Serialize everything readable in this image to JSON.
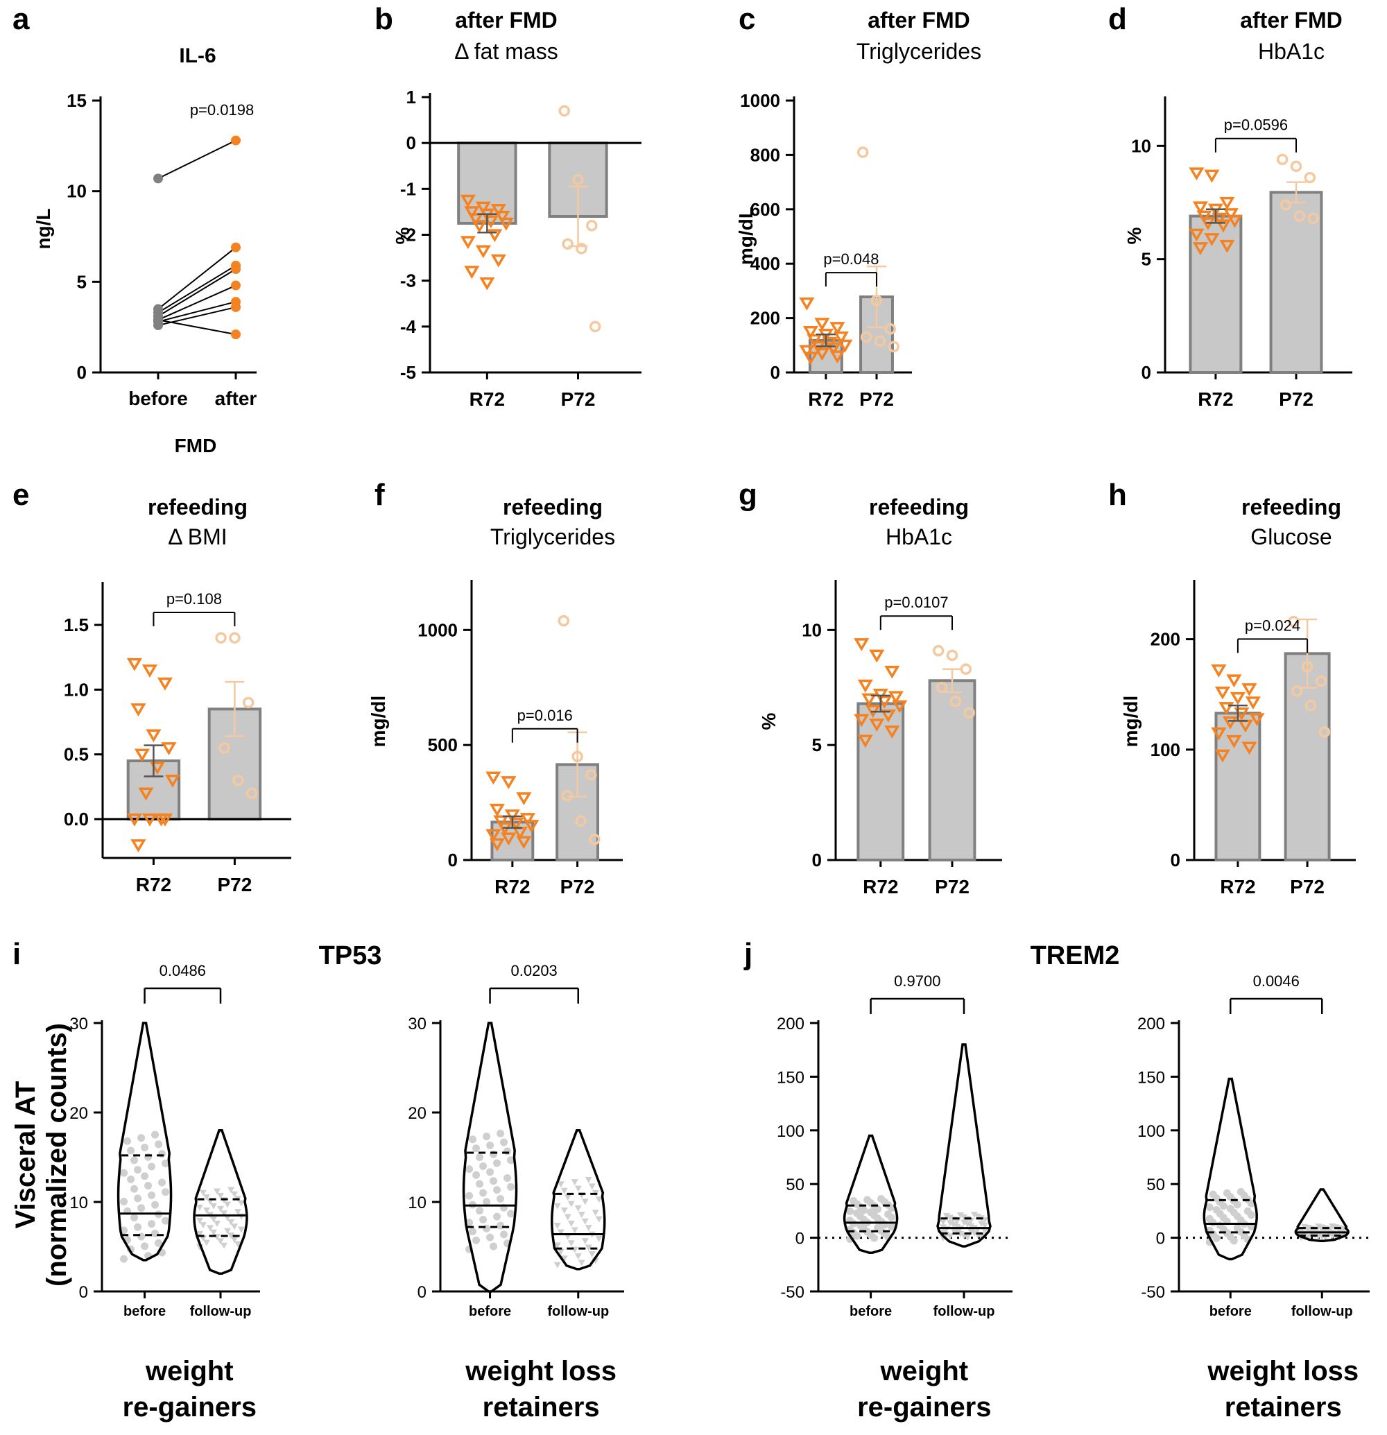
{
  "colors": {
    "orange": "#f58220",
    "peach": "#f5c9a0",
    "gray_point": "#808080",
    "bar": "#c8c8c8",
    "bar_edge": "#808080",
    "violin_point": "#cfcfcf"
  },
  "chart_data": [
    {
      "panel": "a",
      "type": "line",
      "title": [
        "IL-6"
      ],
      "ylabel": "ng/L",
      "xlabel": "FMD",
      "categories": [
        "before",
        "after"
      ],
      "ylim": [
        0,
        15
      ],
      "yticks": [
        "0",
        "5",
        "10",
        "15"
      ],
      "pvalue": "p=0.0198",
      "pairs": [
        [
          10.7,
          12.8
        ],
        [
          3.5,
          6.9
        ],
        [
          3.3,
          5.9
        ],
        [
          3.1,
          5.7
        ],
        [
          2.9,
          4.8
        ],
        [
          2.8,
          3.9
        ],
        [
          2.6,
          3.6
        ],
        [
          2.9,
          2.1
        ]
      ]
    },
    {
      "panel": "b",
      "type": "bar",
      "title": [
        "after FMD",
        "Δ fat mass"
      ],
      "ylabel": "%",
      "categories": [
        "R72",
        "P72"
      ],
      "ylim": [
        -5,
        1
      ],
      "yticks": [
        "-5",
        "-4",
        "-3",
        "-2",
        "-1",
        "0",
        "1"
      ],
      "values": [
        -1.75,
        -1.6
      ],
      "sem": [
        0.2,
        0.65
      ],
      "points": [
        [
          -1.25,
          -1.4,
          -1.45,
          -1.5,
          -1.55,
          -1.6,
          -1.65,
          -1.7,
          -1.75,
          -1.8,
          -2.0,
          -2.15,
          -2.35,
          -2.55,
          -2.8,
          -3.05
        ],
        [
          0.7,
          -0.8,
          -1.8,
          -2.2,
          -2.3,
          -4.0
        ]
      ]
    },
    {
      "panel": "c",
      "type": "bar",
      "title": [
        "after FMD",
        "Triglycerides"
      ],
      "ylabel": "mg/dL",
      "categories": [
        "R72",
        "P72"
      ],
      "ylim": [
        0,
        1000
      ],
      "yticks": [
        "0",
        "200",
        "400",
        "600",
        "800",
        "1000"
      ],
      "values": [
        118,
        278
      ],
      "sem": [
        22,
        112
      ],
      "pvalue": "p=0.048",
      "points": [
        [
          255,
          180,
          165,
          150,
          140,
          130,
          120,
          110,
          100,
          95,
          90,
          80,
          70,
          60,
          55
        ],
        [
          810,
          265,
          160,
          130,
          115,
          95
        ]
      ]
    },
    {
      "panel": "d",
      "type": "bar",
      "title": [
        "after FMD",
        "HbA1c"
      ],
      "ylabel": "%",
      "categories": [
        "R72",
        "P72"
      ],
      "ylim": [
        0,
        12
      ],
      "yticks": [
        "0",
        "5",
        "10"
      ],
      "values": [
        6.9,
        7.95
      ],
      "sem": [
        0.3,
        0.45
      ],
      "pvalue": "p=0.0596",
      "points": [
        [
          8.8,
          8.7,
          7.5,
          7.3,
          7.2,
          7.0,
          6.9,
          6.8,
          6.7,
          6.6,
          6.5,
          6.1,
          5.9,
          5.6,
          5.5
        ],
        [
          9.4,
          9.1,
          8.6,
          7.4,
          6.9,
          6.8
        ]
      ]
    },
    {
      "panel": "e",
      "type": "bar",
      "title": [
        "refeeding",
        "Δ BMI"
      ],
      "ylabel": "",
      "categories": [
        "R72",
        "P72"
      ],
      "ylim": [
        -0.3,
        1.8
      ],
      "yticks": [
        "0.0",
        "0.5",
        "1.0",
        "1.5"
      ],
      "values": [
        0.45,
        0.85
      ],
      "sem": [
        0.12,
        0.21
      ],
      "pvalue": "p=0.108",
      "points": [
        [
          1.2,
          1.15,
          1.05,
          0.85,
          0.65,
          0.55,
          0.5,
          0.4,
          0.3,
          0.2,
          0.0,
          0.0,
          0.0,
          0.0,
          -0.2
        ],
        [
          1.4,
          1.4,
          0.9,
          0.55,
          0.3,
          0.2
        ]
      ]
    },
    {
      "panel": "f",
      "type": "bar",
      "title": [
        "refeeding",
        "Triglycerides"
      ],
      "ylabel": "mg/dl",
      "categories": [
        "R72",
        "P72"
      ],
      "ylim": [
        0,
        1200
      ],
      "yticks": [
        "0",
        "500",
        "1000"
      ],
      "values": [
        165,
        415
      ],
      "sem": [
        25,
        140
      ],
      "pvalue": "p=0.016",
      "points": [
        [
          360,
          340,
          270,
          220,
          195,
          180,
          170,
          160,
          150,
          140,
          120,
          110,
          95,
          80,
          70
        ],
        [
          1040,
          450,
          370,
          280,
          170,
          90
        ]
      ]
    },
    {
      "panel": "g",
      "type": "bar",
      "title": [
        "refeeding",
        "HbA1c"
      ],
      "ylabel": "%",
      "categories": [
        "R72",
        "P72"
      ],
      "ylim": [
        0,
        12
      ],
      "yticks": [
        "0",
        "5",
        "10"
      ],
      "values": [
        6.8,
        7.8
      ],
      "sem": [
        0.35,
        0.5
      ],
      "pvalue": "p=0.0107",
      "points": [
        [
          9.4,
          8.9,
          8.2,
          7.6,
          7.2,
          7.1,
          7.0,
          6.9,
          6.7,
          6.5,
          6.3,
          6.1,
          5.9,
          5.6,
          5.2
        ],
        [
          9.1,
          8.9,
          8.3,
          7.5,
          6.9,
          6.4
        ]
      ]
    },
    {
      "panel": "h",
      "type": "bar",
      "title": [
        "refeeding",
        "Glucose"
      ],
      "ylabel": "mg/dl",
      "categories": [
        "R72",
        "P72"
      ],
      "ylim": [
        0,
        250
      ],
      "yticks": [
        "0",
        "100",
        "200"
      ],
      "values": [
        133,
        187
      ],
      "sem": [
        7,
        31
      ],
      "pvalue": "p=0.024",
      "points": [
        [
          172,
          163,
          155,
          152,
          147,
          143,
          138,
          133,
          128,
          125,
          122,
          115,
          108,
          102,
          95
        ],
        [
          216,
          175,
          162,
          153,
          140,
          116
        ]
      ]
    },
    {
      "panel": "i",
      "type": "violin",
      "title": [
        "TP53"
      ],
      "ylabel": "Visceral AT",
      "ylabel2": "(normalized counts)",
      "subplots": [
        {
          "group": [
            "weight",
            "re-gainers"
          ],
          "categories": [
            "before",
            "follow-up"
          ],
          "ylim": [
            0,
            30
          ],
          "yticks": [
            "0",
            "10",
            "20",
            "30"
          ],
          "pvalue": "0.0486",
          "median": [
            8.7,
            8.5
          ],
          "q1": [
            6.3,
            6.2
          ],
          "q3": [
            15.2,
            10.3
          ],
          "min": [
            3.5,
            2.0
          ],
          "max": [
            30,
            18
          ]
        },
        {
          "group": [
            "weight loss",
            "retainers"
          ],
          "categories": [
            "before",
            "follow-up"
          ],
          "ylim": [
            0,
            30
          ],
          "yticks": [
            "0",
            "10",
            "20",
            "30"
          ],
          "pvalue": "0.0203",
          "median": [
            9.6,
            6.4
          ],
          "q1": [
            7.2,
            4.8
          ],
          "q3": [
            15.5,
            10.9
          ],
          "min": [
            0,
            2.5
          ],
          "max": [
            30,
            18
          ]
        }
      ]
    },
    {
      "panel": "j",
      "type": "violin",
      "title": [
        "TREM2"
      ],
      "ylabel": "",
      "subplots": [
        {
          "group": [
            "weight",
            "re-gainers"
          ],
          "categories": [
            "before",
            "follow-up"
          ],
          "ylim": [
            -50,
            200
          ],
          "yticks": [
            "-50",
            "0",
            "50",
            "100",
            "150",
            "200"
          ],
          "pvalue": "0.9700",
          "median": [
            14,
            9
          ],
          "q1": [
            6,
            4
          ],
          "q3": [
            30,
            18
          ],
          "min": [
            -14,
            -8
          ],
          "max": [
            95,
            180
          ]
        },
        {
          "group": [
            "weight loss",
            "retainers"
          ],
          "categories": [
            "before",
            "follow-up"
          ],
          "ylim": [
            -50,
            200
          ],
          "yticks": [
            "-50",
            "0",
            "50",
            "100",
            "150",
            "200"
          ],
          "pvalue": "0.0046",
          "median": [
            13,
            5
          ],
          "q1": [
            5,
            2
          ],
          "q3": [
            35,
            9
          ],
          "min": [
            -20,
            -3
          ],
          "max": [
            148,
            45
          ]
        }
      ]
    }
  ]
}
